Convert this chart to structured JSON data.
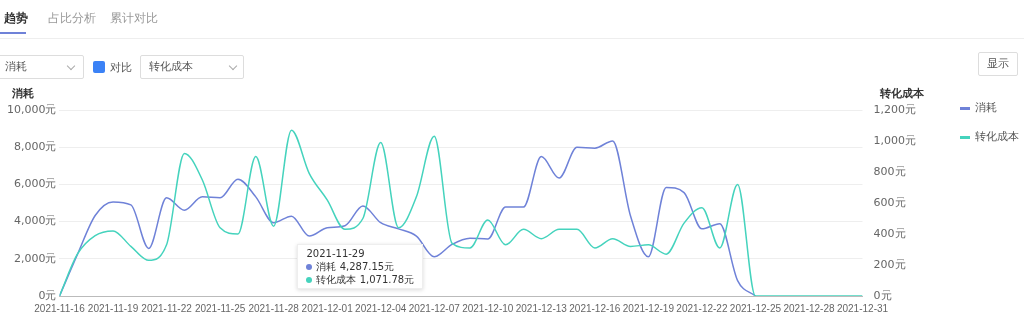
{
  "chart_data": {
    "type": "line",
    "ylabel": "消耗",
    "y2label": "转化成本",
    "annotations": [
      "趋势",
      "占比分析",
      "累计对比",
      "消耗",
      "对比",
      "转化成本",
      "显示",
      "2021-11-29",
      "消耗 4,287.15元",
      "转化成本 1,071.78元"
    ],
    "x": [
      "2021-11-16",
      "2021-11-17",
      "2021-11-18",
      "2021-11-19",
      "2021-11-20",
      "2021-11-21",
      "2021-11-22",
      "2021-11-23",
      "2021-11-24",
      "2021-11-25",
      "2021-11-26",
      "2021-11-27",
      "2021-11-28",
      "2021-11-29",
      "2021-11-30",
      "2021-12-01",
      "2021-12-02",
      "2021-12-03",
      "2021-12-04",
      "2021-12-05",
      "2021-12-06",
      "2021-12-07",
      "2021-12-08",
      "2021-12-09",
      "2021-12-10",
      "2021-12-11",
      "2021-12-12",
      "2021-12-13",
      "2021-12-14",
      "2021-12-15",
      "2021-12-16",
      "2021-12-17",
      "2021-12-18",
      "2021-12-19",
      "2021-12-20",
      "2021-12-21",
      "2021-12-22",
      "2021-12-23",
      "2021-12-24",
      "2021-12-25",
      "2021-12-26",
      "2021-12-27",
      "2021-12-28",
      "2021-12-29",
      "2021-12-30",
      "2021-12-31"
    ],
    "series": [
      {
        "name": "消耗",
        "color": "#6f82d8",
        "values": [
          0,
          2220,
          4330,
          5060,
          4900,
          2560,
          5280,
          4610,
          5330,
          5280,
          6280,
          5330,
          3940,
          4290,
          3220,
          3670,
          3780,
          4840,
          3940,
          3610,
          3220,
          2110,
          2780,
          3110,
          3060,
          4780,
          4780,
          7500,
          6340,
          8000,
          7950,
          8340,
          4300,
          2110,
          5840,
          5560,
          3610,
          3890,
          830,
          0,
          null,
          null,
          null,
          null,
          null,
          null
        ]
      },
      {
        "name": "转化成本",
        "color": "#45d3bd",
        "axis": "y2",
        "values": [
          0,
          270,
          390,
          420,
          320,
          230,
          330,
          920,
          750,
          440,
          400,
          900,
          450,
          1070,
          790,
          620,
          430,
          500,
          990,
          440,
          640,
          1030,
          340,
          310,
          490,
          330,
          430,
          370,
          430,
          430,
          310,
          370,
          320,
          330,
          270,
          470,
          570,
          310,
          720,
          0,
          0,
          0,
          0,
          0,
          0,
          0
        ]
      }
    ],
    "xlim": [
      "2021-11-16",
      "2021-12-31"
    ],
    "xticks": [
      "2021-11-16",
      "2021-11-19",
      "2021-11-22",
      "2021-11-25",
      "2021-11-28",
      "2021-12-01",
      "2021-12-04",
      "2021-12-07",
      "2021-12-10",
      "2021-12-13",
      "2021-12-16",
      "2021-12-19",
      "2021-12-22",
      "2021-12-25",
      "2021-12-28",
      "2021-12-31"
    ],
    "ylim": [
      0,
      10000
    ],
    "yticks": [
      {
        "value": 0,
        "label": "0元"
      },
      {
        "value": 2000,
        "label": "2,000元"
      },
      {
        "value": 4000,
        "label": "4,000元"
      },
      {
        "value": 6000,
        "label": "6,000元"
      },
      {
        "value": 8000,
        "label": "8,000元"
      },
      {
        "value": 10000,
        "label": "10,000元"
      }
    ],
    "y2lim": [
      0,
      1200
    ],
    "y2ticks": [
      {
        "value": 0,
        "label": "0元"
      },
      {
        "value": 200,
        "label": "200元"
      },
      {
        "value": 400,
        "label": "400元"
      },
      {
        "value": 600,
        "label": "600元"
      },
      {
        "value": 800,
        "label": "800元"
      },
      {
        "value": 1000,
        "label": "1,000元"
      },
      {
        "value": 1200,
        "label": "1,200元"
      }
    ],
    "grid": "y",
    "legend": "right",
    "marker": "none",
    "line_style": "solid"
  }
}
